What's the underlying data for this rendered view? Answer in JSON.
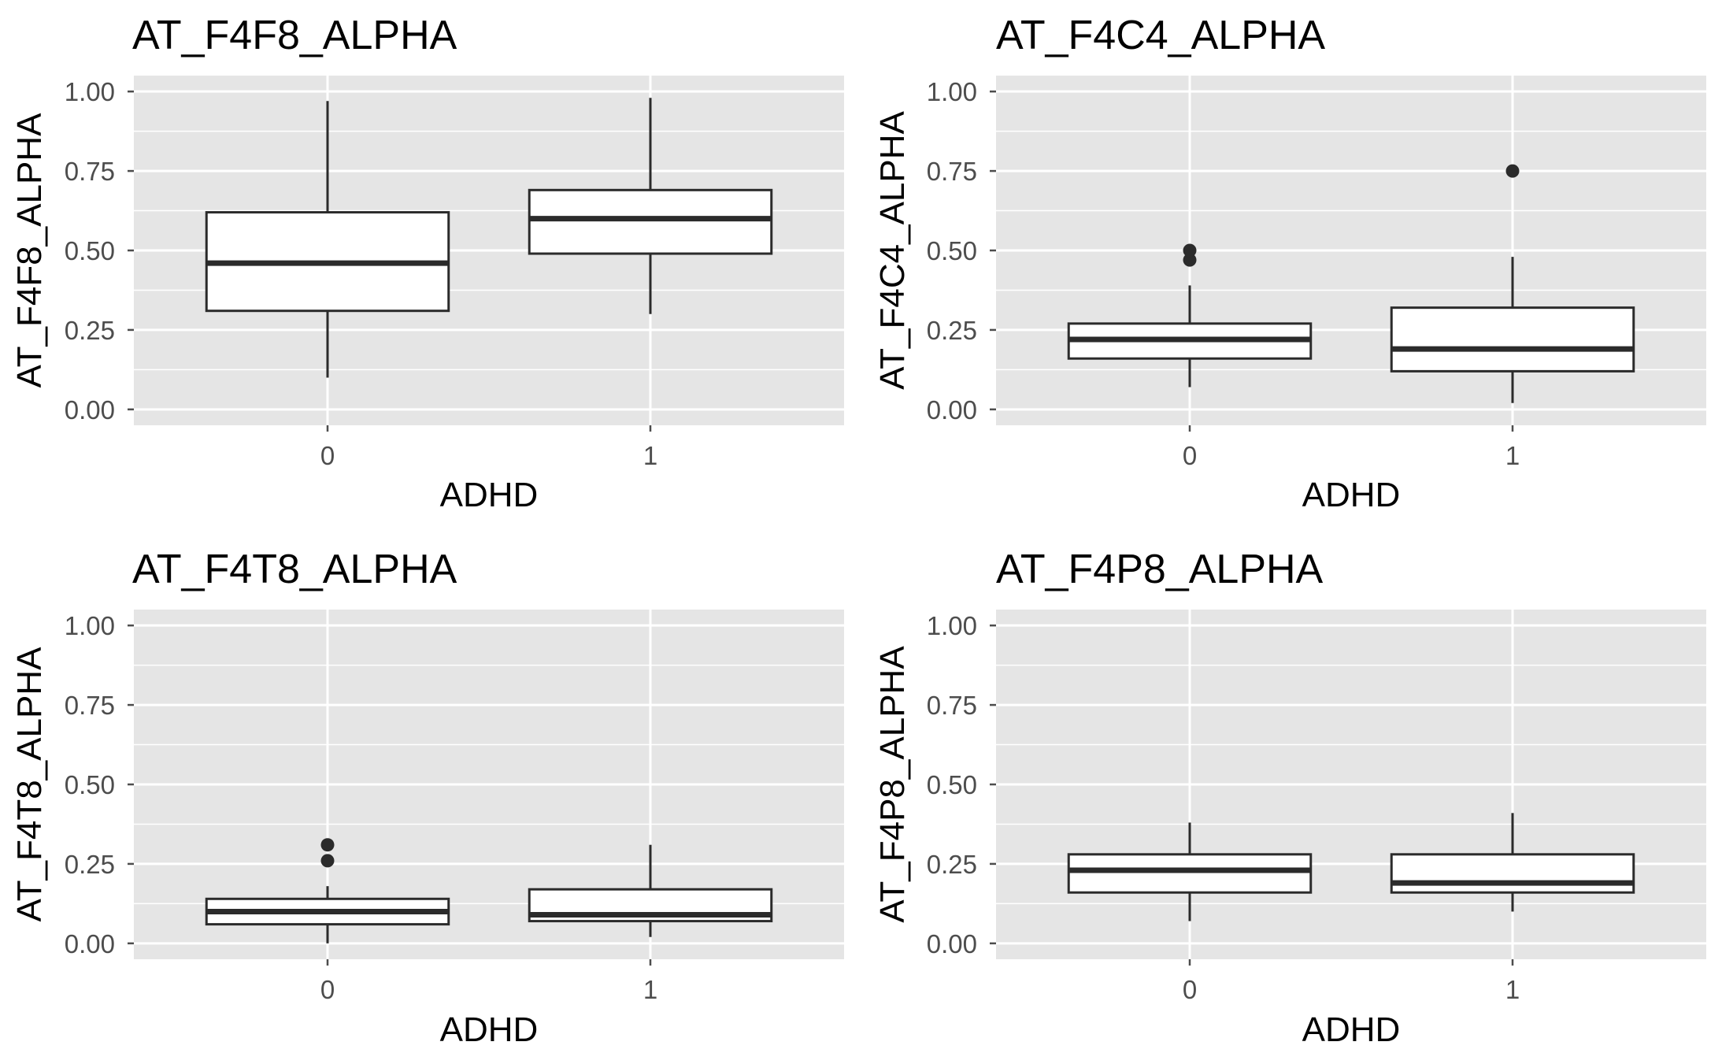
{
  "chart_data": [
    {
      "type": "box",
      "title": "AT_F4F8_ALPHA",
      "xlabel": "ADHD",
      "ylabel": "AT_F4F8_ALPHA",
      "ylim": [
        -0.05,
        1.05
      ],
      "yticks": [
        "0.00",
        "0.25",
        "0.50",
        "0.75",
        "1.00"
      ],
      "categories": [
        "0",
        "1"
      ],
      "boxes": [
        {
          "category": "0",
          "whisker_low": 0.1,
          "q1": 0.31,
          "median": 0.46,
          "q3": 0.62,
          "whisker_high": 0.97,
          "outliers": []
        },
        {
          "category": "1",
          "whisker_low": 0.3,
          "q1": 0.49,
          "median": 0.6,
          "q3": 0.69,
          "whisker_high": 0.98,
          "outliers": []
        }
      ],
      "grid": true
    },
    {
      "type": "box",
      "title": "AT_F4C4_ALPHA",
      "xlabel": "ADHD",
      "ylabel": "AT_F4C4_ALPHA",
      "ylim": [
        -0.05,
        1.05
      ],
      "yticks": [
        "0.00",
        "0.25",
        "0.50",
        "0.75",
        "1.00"
      ],
      "categories": [
        "0",
        "1"
      ],
      "boxes": [
        {
          "category": "0",
          "whisker_low": 0.07,
          "q1": 0.16,
          "median": 0.22,
          "q3": 0.27,
          "whisker_high": 0.39,
          "outliers": [
            0.47,
            0.5
          ]
        },
        {
          "category": "1",
          "whisker_low": 0.02,
          "q1": 0.12,
          "median": 0.19,
          "q3": 0.32,
          "whisker_high": 0.48,
          "outliers": [
            0.75
          ]
        }
      ],
      "grid": true
    },
    {
      "type": "box",
      "title": "AT_F4T8_ALPHA",
      "xlabel": "ADHD",
      "ylabel": "AT_F4T8_ALPHA",
      "ylim": [
        -0.05,
        1.05
      ],
      "yticks": [
        "0.00",
        "0.25",
        "0.50",
        "0.75",
        "1.00"
      ],
      "categories": [
        "0",
        "1"
      ],
      "boxes": [
        {
          "category": "0",
          "whisker_low": 0.0,
          "q1": 0.06,
          "median": 0.1,
          "q3": 0.14,
          "whisker_high": 0.18,
          "outliers": [
            0.26,
            0.31
          ]
        },
        {
          "category": "1",
          "whisker_low": 0.02,
          "q1": 0.07,
          "median": 0.09,
          "q3": 0.17,
          "whisker_high": 0.31,
          "outliers": []
        }
      ],
      "grid": true
    },
    {
      "type": "box",
      "title": "AT_F4P8_ALPHA",
      "xlabel": "ADHD",
      "ylabel": "AT_F4P8_ALPHA",
      "ylim": [
        -0.05,
        1.05
      ],
      "yticks": [
        "0.00",
        "0.25",
        "0.50",
        "0.75",
        "1.00"
      ],
      "categories": [
        "0",
        "1"
      ],
      "boxes": [
        {
          "category": "0",
          "whisker_low": 0.07,
          "q1": 0.16,
          "median": 0.23,
          "q3": 0.28,
          "whisker_high": 0.38,
          "outliers": []
        },
        {
          "category": "1",
          "whisker_low": 0.1,
          "q1": 0.16,
          "median": 0.19,
          "q3": 0.28,
          "whisker_high": 0.41,
          "outliers": []
        }
      ],
      "grid": true
    }
  ],
  "style": {
    "panel_bg": "#e5e5e5",
    "grid_color": "#ffffff",
    "box_fill": "#ffffff",
    "box_stroke": "#2b2b2b",
    "outlier_color": "#2b2b2b",
    "tick_color": "#4d4d4d"
  }
}
